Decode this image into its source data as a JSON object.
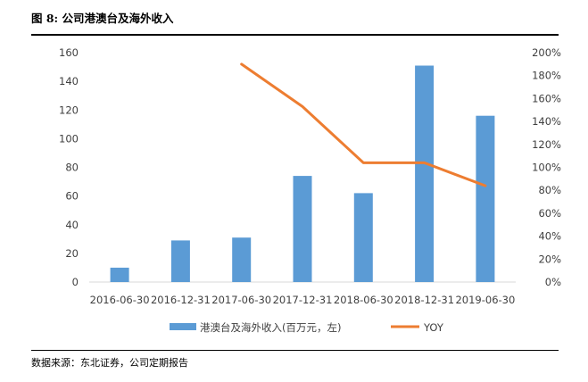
{
  "figure": {
    "title": "图 8: 公司港澳台及海外收入",
    "source": "数据来源：东北证券，公司定期报告"
  },
  "chart_data": {
    "type": "bar",
    "categories": [
      "2016-06-30",
      "2016-12-31",
      "2017-06-30",
      "2017-12-31",
      "2018-06-30",
      "2018-12-31",
      "2019-06-30"
    ],
    "series": [
      {
        "name": "港澳台及海外收入(百万元，左)",
        "type": "bar",
        "axis": "left",
        "color": "#5B9BD5",
        "values": [
          10,
          29,
          31,
          74,
          62,
          151,
          116
        ]
      },
      {
        "name": "YOY",
        "type": "line",
        "axis": "right",
        "color": "#ED7D31",
        "values": [
          null,
          null,
          1.9,
          1.53,
          1.04,
          1.04,
          0.84
        ]
      }
    ],
    "y_left": {
      "min": 0,
      "max": 160,
      "ticks": [
        "0",
        "20",
        "40",
        "60",
        "80",
        "100",
        "120",
        "140",
        "160"
      ]
    },
    "y_right": {
      "min": 0,
      "max": 2.0,
      "ticks": [
        "0%",
        "20%",
        "40%",
        "60%",
        "80%",
        "100%",
        "120%",
        "140%",
        "160%",
        "180%",
        "200%"
      ]
    },
    "grid": false,
    "legend_position": "bottom"
  }
}
